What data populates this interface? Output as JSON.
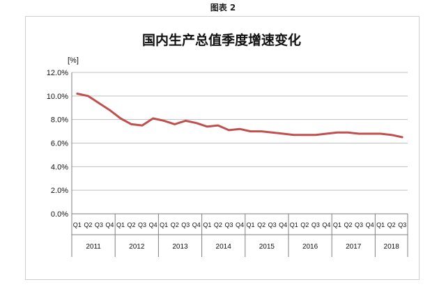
{
  "figure_caption": "图表 2",
  "chart_data": {
    "type": "line",
    "title": "国内生产总值季度增速变化",
    "ylabel": "[%]",
    "xlabel": "",
    "ylim": [
      0,
      12
    ],
    "yticks": [
      "0.0%",
      "2.0%",
      "4.0%",
      "6.0%",
      "8.0%",
      "10.0%",
      "12.0%"
    ],
    "grid": true,
    "line_color": "#c0504d",
    "years": [
      "2011",
      "2012",
      "2013",
      "2014",
      "2015",
      "2016",
      "2017",
      "2018"
    ],
    "categories": [
      "Q1",
      "Q2",
      "Q3",
      "Q4",
      "Q1",
      "Q2",
      "Q3",
      "Q4",
      "Q1",
      "Q2",
      "Q3",
      "Q4",
      "Q1",
      "Q2",
      "Q3",
      "Q4",
      "Q1",
      "Q2",
      "Q3",
      "Q4",
      "Q1",
      "Q2",
      "Q3",
      "Q4",
      "Q1",
      "Q2",
      "Q3",
      "Q4",
      "Q1",
      "Q2",
      "Q3"
    ],
    "values": [
      10.2,
      10.0,
      9.4,
      8.8,
      8.1,
      7.6,
      7.5,
      8.1,
      7.9,
      7.6,
      7.9,
      7.7,
      7.4,
      7.5,
      7.1,
      7.2,
      7.0,
      7.0,
      6.9,
      6.8,
      6.7,
      6.7,
      6.7,
      6.8,
      6.9,
      6.9,
      6.8,
      6.8,
      6.8,
      6.7,
      6.5
    ]
  }
}
